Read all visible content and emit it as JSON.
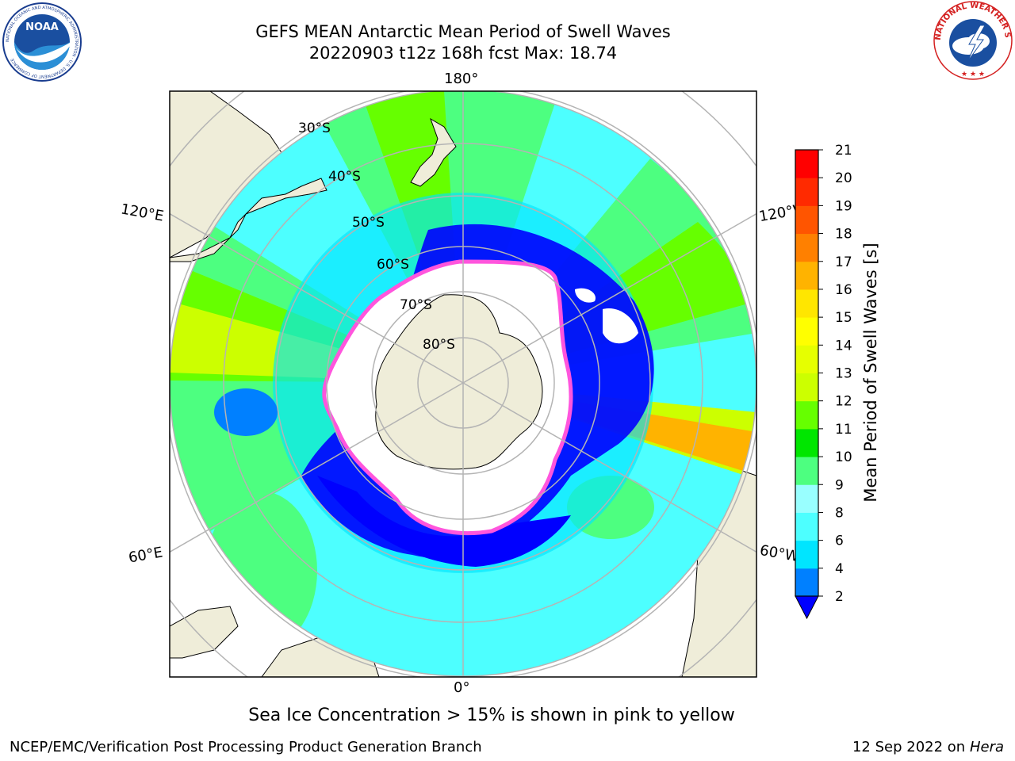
{
  "header": {
    "title_line1": "GEFS MEAN Antarctic Mean Period of Swell Waves",
    "title_line2": "20220903 t12z 168h fcst   Max: 18.74"
  },
  "logos": {
    "left": {
      "text": "NOAA",
      "ring_text": "NATIONAL OCEANIC AND ATMOSPHERIC ADMINISTRATION · U.S. DEPARTMENT OF COMMERCE"
    },
    "right": {
      "ring_text": "NATIONAL WEATHER SERVICE"
    }
  },
  "map": {
    "projection": "south polar stereographic",
    "longitude_labels": {
      "top": "180°",
      "bottom": "0°",
      "upper_left": "120°E",
      "upper_right": "120°W",
      "lower_left": "60°E",
      "lower_right": "60°W"
    },
    "latitude_labels": [
      "30°S",
      "40°S",
      "50°S",
      "60°S",
      "70°S",
      "80°S"
    ],
    "colors": {
      "land": "#efedd9",
      "ice_free_white": "#ffffff",
      "ice_edge": "#ff55dd",
      "grid": "#b4b4b4"
    }
  },
  "colorbar": {
    "label": "Mean Period of Swell Waves [s]",
    "ticks": [
      "2",
      "4",
      "6",
      "8",
      "9",
      "10",
      "11",
      "12",
      "13",
      "14",
      "15",
      "16",
      "17",
      "18",
      "19",
      "20",
      "21"
    ],
    "bins": [
      {
        "from": 2,
        "to": 4,
        "color": "#0080ff"
      },
      {
        "from": 4,
        "to": 6,
        "color": "#00e5ff"
      },
      {
        "from": 6,
        "to": 8,
        "color": "#4dffff"
      },
      {
        "from": 8,
        "to": 9,
        "color": "#99ffff"
      },
      {
        "from": 9,
        "to": 10,
        "color": "#4dff80"
      },
      {
        "from": 10,
        "to": 11,
        "color": "#00e600"
      },
      {
        "from": 11,
        "to": 12,
        "color": "#66ff00"
      },
      {
        "from": 12,
        "to": 13,
        "color": "#ccff00"
      },
      {
        "from": 13,
        "to": 14,
        "color": "#e6ff00"
      },
      {
        "from": 14,
        "to": 15,
        "color": "#ffff00"
      },
      {
        "from": 15,
        "to": 16,
        "color": "#ffe600"
      },
      {
        "from": 16,
        "to": 17,
        "color": "#ffb300"
      },
      {
        "from": 17,
        "to": 18,
        "color": "#ff8000"
      },
      {
        "from": 18,
        "to": 19,
        "color": "#ff5500"
      },
      {
        "from": 19,
        "to": 20,
        "color": "#ff2a00"
      },
      {
        "from": 20,
        "to": 21,
        "color": "#ff0000"
      }
    ],
    "under_color": "#0000ff"
  },
  "footer": {
    "note": "Sea Ice Concentration > 15% is shown in pink to yellow",
    "credit_left": "NCEP/EMC/Verification Post Processing Product Generation Branch",
    "credit_right_date": "12 Sep 2022 on",
    "credit_right_host": "Hera"
  }
}
